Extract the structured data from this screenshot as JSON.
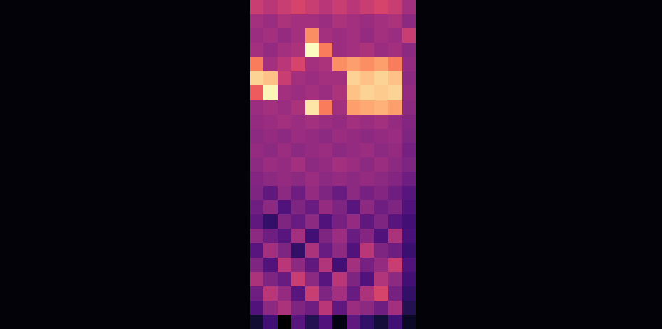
{
  "chart_data": {
    "type": "heatmap",
    "tick_labels": false,
    "color": "magma",
    "cells": [
      [
        60,
        58,
        60,
        62,
        60,
        58,
        60,
        58,
        60,
        62,
        60,
        55
      ],
      [
        55,
        54,
        56,
        55,
        55,
        54,
        56,
        55,
        54,
        55,
        56,
        52
      ],
      [
        54,
        55,
        53,
        55,
        72,
        55,
        54,
        55,
        53,
        55,
        54,
        60
      ],
      [
        55,
        53,
        55,
        56,
        85,
        70,
        54,
        55,
        56,
        54,
        55,
        52
      ],
      [
        70,
        55,
        58,
        62,
        55,
        56,
        72,
        74,
        72,
        74,
        70,
        53
      ],
      [
        80,
        78,
        60,
        55,
        54,
        55,
        55,
        80,
        78,
        80,
        78,
        52
      ],
      [
        66,
        84,
        55,
        54,
        55,
        54,
        56,
        78,
        80,
        79,
        80,
        53
      ],
      [
        54,
        55,
        54,
        56,
        82,
        70,
        55,
        74,
        75,
        76,
        74,
        52
      ],
      [
        53,
        54,
        55,
        54,
        55,
        54,
        53,
        55,
        54,
        55,
        53,
        51
      ],
      [
        52,
        53,
        52,
        54,
        53,
        52,
        54,
        53,
        52,
        53,
        54,
        50
      ],
      [
        53,
        52,
        54,
        52,
        53,
        54,
        52,
        53,
        54,
        52,
        53,
        49
      ],
      [
        52,
        54,
        53,
        55,
        52,
        53,
        55,
        54,
        52,
        54,
        52,
        50
      ],
      [
        51,
        52,
        53,
        52,
        54,
        52,
        53,
        52,
        53,
        52,
        51,
        48
      ],
      [
        50,
        46,
        52,
        48,
        53,
        50,
        47,
        52,
        49,
        51,
        48,
        45
      ],
      [
        48,
        52,
        44,
        50,
        47,
        53,
        50,
        45,
        52,
        48,
        50,
        44
      ],
      [
        46,
        40,
        50,
        47,
        52,
        44,
        49,
        53,
        46,
        50,
        45,
        42
      ],
      [
        52,
        48,
        45,
        55,
        42,
        50,
        54,
        47,
        51,
        44,
        56,
        43
      ],
      [
        45,
        55,
        50,
        40,
        56,
        47,
        52,
        44,
        58,
        50,
        48,
        41
      ],
      [
        50,
        44,
        58,
        52,
        46,
        57,
        42,
        55,
        49,
        53,
        60,
        44
      ],
      [
        56,
        50,
        47,
        60,
        52,
        45,
        58,
        50,
        44,
        57,
        52,
        42
      ],
      [
        48,
        58,
        53,
        45,
        60,
        50,
        55,
        47,
        56,
        62,
        49,
        40
      ],
      [
        44,
        52,
        56,
        50,
        48,
        58,
        46,
        54,
        52,
        48,
        55,
        38
      ],
      [
        35,
        42,
        30,
        45,
        38,
        44,
        32,
        46,
        40,
        36,
        42,
        34
      ]
    ]
  }
}
